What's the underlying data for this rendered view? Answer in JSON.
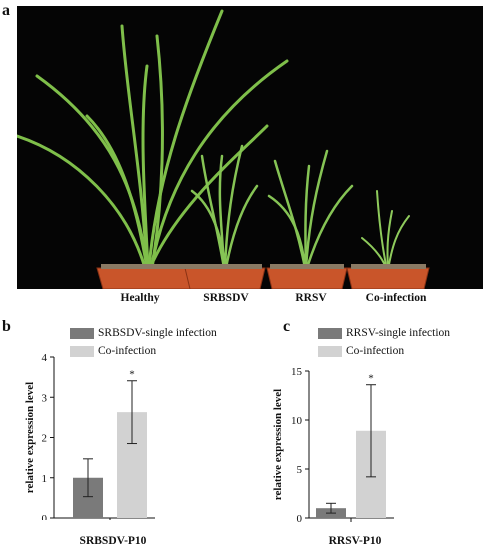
{
  "figure": {
    "panel_a": {
      "letter": "a",
      "plant_labels": [
        "Healthy",
        "SRBSDV",
        "RRSV",
        "Co-infection"
      ]
    }
  },
  "chart_data": [
    {
      "panel": "b",
      "type": "bar",
      "categories": [
        "SRBSDV-P10"
      ],
      "xlabel": "SRBSDV-P10",
      "ylabel": "relative expression level",
      "ylim": [
        0,
        4
      ],
      "yticks": [
        0,
        1,
        2,
        3,
        4
      ],
      "series": [
        {
          "name": "SRBSDV-single infection",
          "values": [
            1.0
          ],
          "error": [
            0.47
          ],
          "color": "#7a7a7a"
        },
        {
          "name": "Co-infection",
          "values": [
            2.63
          ],
          "error": [
            0.78
          ],
          "color": "#d2d2d2",
          "annotation": "*"
        }
      ],
      "legend": "top-left",
      "grid": false
    },
    {
      "panel": "c",
      "type": "bar",
      "categories": [
        "RRSV-P10"
      ],
      "xlabel": "RRSV-P10",
      "ylabel": "relative expression level",
      "ylim": [
        0,
        15
      ],
      "yticks": [
        0,
        5,
        10,
        15
      ],
      "series": [
        {
          "name": "RRSV-single infection",
          "values": [
            1.0
          ],
          "error": [
            0.5
          ],
          "color": "#7a7a7a"
        },
        {
          "name": "Co-infection",
          "values": [
            8.9
          ],
          "error": [
            4.7
          ],
          "color": "#d2d2d2",
          "annotation": "*"
        }
      ],
      "legend": "top-left",
      "grid": false
    }
  ]
}
